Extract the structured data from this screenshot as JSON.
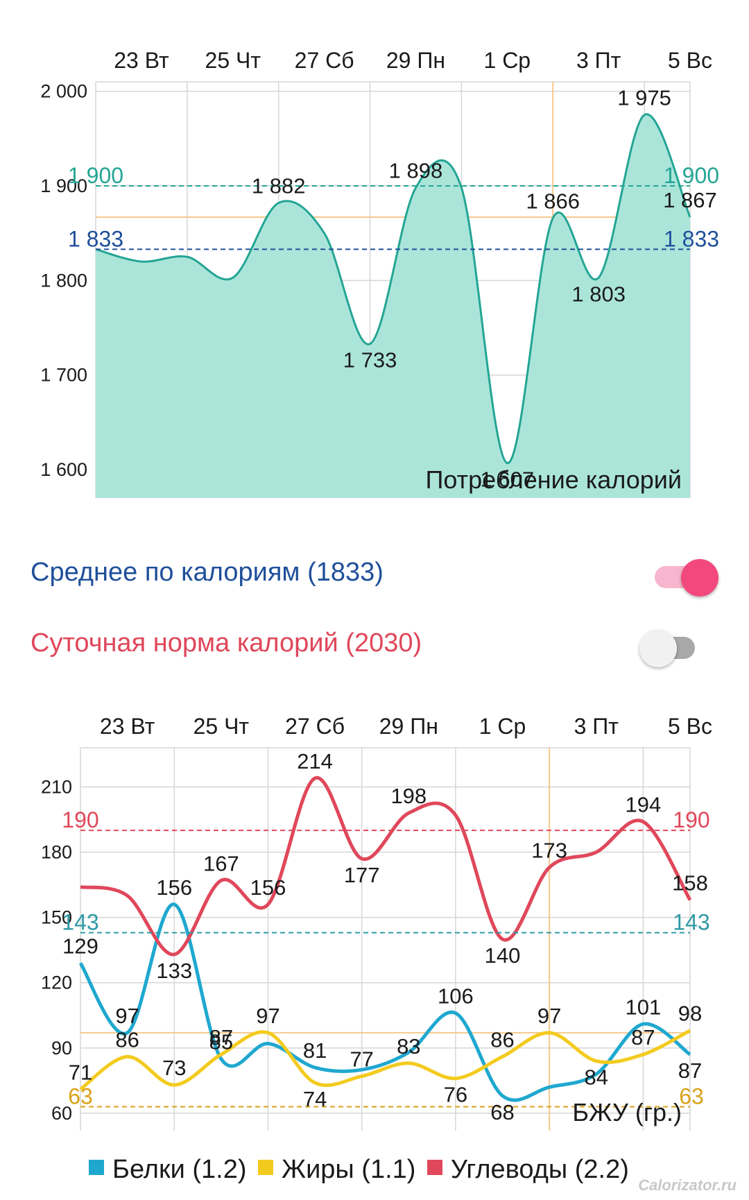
{
  "colors": {
    "calories_line": "#23a594",
    "calories_fill": "#abe5da",
    "average_line": "#1f4f9a",
    "norm_line": "#23a594",
    "grid": "#d6d6d6",
    "cursor": "#f5c98e",
    "protein": "#1fa8cf",
    "fat": "#f3cb1f",
    "carbs": "#e0475a",
    "toggle_on": "#f3487d"
  },
  "settings": {
    "average": {
      "label": "Среднее по калориям (1833)",
      "color": "#1f4f9a",
      "enabled": true
    },
    "daily_norm": {
      "label": "Суточная норма калорий (2030)",
      "color": "#e0475a",
      "enabled": false
    }
  },
  "legend": [
    {
      "label": "Белки (1.2)",
      "color": "#1fa8cf"
    },
    {
      "label": "Жиры (1.1)",
      "color": "#f3cb1f"
    },
    {
      "label": "Углеводы (2.2)",
      "color": "#e0475a"
    }
  ],
  "watermark": "Calorizator.ru",
  "chart_data": [
    {
      "type": "area",
      "title": "Потребление калорий",
      "x_ticks": [
        "23 Вт",
        "25 Чт",
        "27 Сб",
        "29 Пн",
        "1 Ср",
        "3 Пт",
        "5 Вс"
      ],
      "ylim": [
        1570,
        2010
      ],
      "y_ticks": [
        1600,
        1700,
        1800,
        1900,
        2000
      ],
      "y_tick_labels": [
        "1 600",
        "1 700",
        "1 800",
        "1 900",
        "2 000"
      ],
      "grid": true,
      "series": [
        {
          "values": [
            1833,
            1820,
            1825,
            1803,
            1882,
            1850,
            1733,
            1898,
            1898,
            1607,
            1866,
            1803,
            1975,
            1867
          ],
          "point_labels": [
            "",
            "",
            "",
            "",
            "1 882",
            "",
            "1 733",
            "1 898",
            "",
            "1 607",
            "1 866",
            "1 803",
            "1 975",
            "1 867"
          ]
        }
      ],
      "reference_lines": [
        {
          "value": 1900,
          "label": "1 900",
          "color": "#23a594"
        },
        {
          "value": 1833,
          "label": "1 833",
          "color": "#1f4f9a"
        }
      ]
    },
    {
      "type": "line",
      "title": "БЖУ (гр.)",
      "x_ticks": [
        "23 Вт",
        "25 Чт",
        "27 Сб",
        "29 Пн",
        "1 Ср",
        "3 Пт",
        "5 Вс"
      ],
      "ylim": [
        52,
        228
      ],
      "y_ticks": [
        60,
        90,
        120,
        150,
        180,
        210
      ],
      "grid": true,
      "series": [
        {
          "name": "Белки (1.2)",
          "color": "#1fa8cf",
          "values": [
            129,
            97,
            156,
            85,
            92,
            81,
            80,
            88,
            106,
            68,
            72,
            78,
            101,
            87
          ],
          "point_labels": [
            "129",
            "97",
            "156",
            "85",
            "",
            "81",
            "",
            "",
            "106",
            "68",
            "",
            "",
            "101",
            "87"
          ]
        },
        {
          "name": "Жиры (1.1)",
          "color": "#f3cb1f",
          "values": [
            71,
            86,
            73,
            87,
            97,
            74,
            77,
            83,
            76,
            86,
            97,
            84,
            87,
            98
          ],
          "point_labels": [
            "71",
            "86",
            "73",
            "87",
            "97",
            "74",
            "77",
            "83",
            "76",
            "86",
            "97",
            "84",
            "87",
            "98"
          ]
        },
        {
          "name": "Углеводы (2.2)",
          "color": "#e0475a",
          "values": [
            164,
            160,
            133,
            167,
            156,
            214,
            177,
            198,
            197,
            140,
            173,
            180,
            194,
            158
          ],
          "point_labels": [
            "",
            "",
            "133",
            "167",
            "156",
            "214",
            "177",
            "198",
            "",
            "140",
            "173",
            "",
            "194",
            "158"
          ]
        }
      ],
      "reference_lines": [
        {
          "value": 190,
          "label": "190",
          "color": "#e0475a"
        },
        {
          "value": 143,
          "label": "143",
          "color": "#2e9aa5"
        },
        {
          "value": 63,
          "label": "63",
          "color": "#d9a21a"
        }
      ]
    }
  ]
}
